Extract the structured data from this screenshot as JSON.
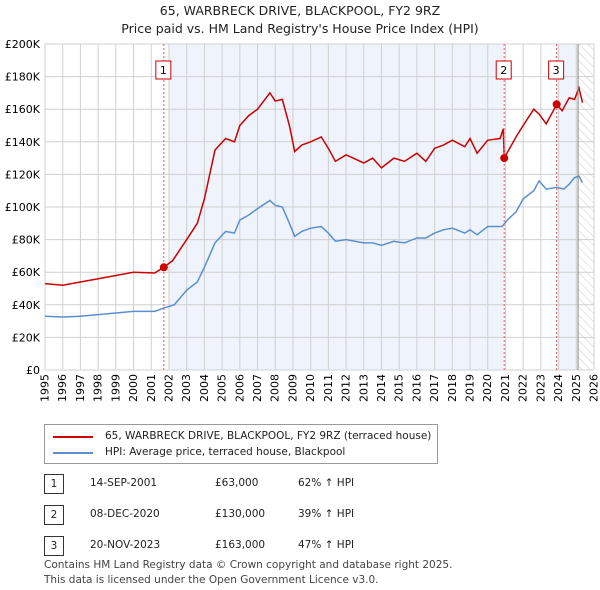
{
  "title_line1": "65, WARBRECK DRIVE, BLACKPOOL, FY2 9RZ",
  "title_line2": "Price paid vs. HM Land Registry's House Price Index (HPI)",
  "colors": {
    "property": "#cc0000",
    "hpi": "#5b8fd0",
    "shade": "#eef3fc"
  },
  "chart_data": {
    "type": "line",
    "xlim": [
      1995,
      2026
    ],
    "ylim": [
      0,
      200000
    ],
    "x_ticks": [
      "1995",
      "1996",
      "1997",
      "1998",
      "1999",
      "2000",
      "2001",
      "2002",
      "2003",
      "2004",
      "2005",
      "2006",
      "2007",
      "2008",
      "2009",
      "2010",
      "2011",
      "2012",
      "2013",
      "2014",
      "2015",
      "2016",
      "2017",
      "2018",
      "2019",
      "2020",
      "2021",
      "2022",
      "2023",
      "2024",
      "2025",
      "2026"
    ],
    "y_ticks": [
      {
        "v": 0,
        "label": "£0"
      },
      {
        "v": 20000,
        "label": "£20K"
      },
      {
        "v": 40000,
        "label": "£40K"
      },
      {
        "v": 60000,
        "label": "£60K"
      },
      {
        "v": 80000,
        "label": "£80K"
      },
      {
        "v": 100000,
        "label": "£100K"
      },
      {
        "v": 120000,
        "label": "£120K"
      },
      {
        "v": 140000,
        "label": "£140K"
      },
      {
        "v": 160000,
        "label": "£160K"
      },
      {
        "v": 180000,
        "label": "£180K"
      },
      {
        "v": 200000,
        "label": "£200K"
      }
    ],
    "series": [
      {
        "name": "65, WARBRECK DRIVE, BLACKPOOL, FY2 9RZ (terraced house)",
        "points": [
          [
            1995,
            53000
          ],
          [
            1996,
            52000
          ],
          [
            1997,
            54000
          ],
          [
            1998,
            56000
          ],
          [
            1999,
            58000
          ],
          [
            2000,
            60000
          ],
          [
            2001.2,
            59500
          ],
          [
            2001.7,
            63000
          ],
          [
            2002.2,
            67000
          ],
          [
            2003,
            80000
          ],
          [
            2003.6,
            90000
          ],
          [
            2004,
            105000
          ],
          [
            2004.6,
            135000
          ],
          [
            2005.2,
            142000
          ],
          [
            2005.7,
            140000
          ],
          [
            2006,
            150000
          ],
          [
            2006.5,
            156000
          ],
          [
            2007,
            160000
          ],
          [
            2007.7,
            170000
          ],
          [
            2008,
            165000
          ],
          [
            2008.4,
            166000
          ],
          [
            2008.8,
            150000
          ],
          [
            2009.1,
            134000
          ],
          [
            2009.5,
            138000
          ],
          [
            2010,
            140000
          ],
          [
            2010.6,
            143000
          ],
          [
            2011,
            136000
          ],
          [
            2011.4,
            128000
          ],
          [
            2012,
            132000
          ],
          [
            2013,
            127000
          ],
          [
            2013.5,
            130000
          ],
          [
            2014,
            124000
          ],
          [
            2014.7,
            130000
          ],
          [
            2015.3,
            128000
          ],
          [
            2016,
            133000
          ],
          [
            2016.5,
            128000
          ],
          [
            2017,
            136000
          ],
          [
            2017.5,
            138000
          ],
          [
            2018,
            141000
          ],
          [
            2018.7,
            137000
          ],
          [
            2019,
            142000
          ],
          [
            2019.4,
            133000
          ],
          [
            2020,
            141000
          ],
          [
            2020.7,
            142000
          ],
          [
            2020.88,
            148000
          ],
          [
            2020.93,
            130000
          ],
          [
            2021.6,
            143000
          ],
          [
            2022,
            150000
          ],
          [
            2022.6,
            160000
          ],
          [
            2022.9,
            157000
          ],
          [
            2023.3,
            151000
          ],
          [
            2023.9,
            163000
          ],
          [
            2024.2,
            159000
          ],
          [
            2024.6,
            167000
          ],
          [
            2024.9,
            166000
          ],
          [
            2025.15,
            173000
          ],
          [
            2025.35,
            164000
          ]
        ]
      },
      {
        "name": "HPI: Average price, terraced house, Blackpool",
        "points": [
          [
            1995,
            33000
          ],
          [
            1996,
            32500
          ],
          [
            1997,
            33000
          ],
          [
            1998,
            34000
          ],
          [
            1999,
            35000
          ],
          [
            2000,
            36000
          ],
          [
            2001.2,
            36000
          ],
          [
            2001.7,
            38000
          ],
          [
            2002.3,
            40000
          ],
          [
            2003,
            49000
          ],
          [
            2003.6,
            54000
          ],
          [
            2004,
            63000
          ],
          [
            2004.6,
            78000
          ],
          [
            2005.2,
            85000
          ],
          [
            2005.7,
            84000
          ],
          [
            2006,
            92000
          ],
          [
            2006.5,
            95000
          ],
          [
            2007,
            99000
          ],
          [
            2007.7,
            104000
          ],
          [
            2008,
            101000
          ],
          [
            2008.4,
            100000
          ],
          [
            2008.8,
            90000
          ],
          [
            2009.1,
            82000
          ],
          [
            2009.5,
            85000
          ],
          [
            2010,
            87000
          ],
          [
            2010.6,
            88000
          ],
          [
            2011,
            84000
          ],
          [
            2011.4,
            79000
          ],
          [
            2012,
            80000
          ],
          [
            2013,
            78000
          ],
          [
            2013.5,
            78000
          ],
          [
            2014,
            76500
          ],
          [
            2014.7,
            79000
          ],
          [
            2015.3,
            78000
          ],
          [
            2016,
            81000
          ],
          [
            2016.5,
            81000
          ],
          [
            2017,
            84000
          ],
          [
            2017.5,
            86000
          ],
          [
            2018,
            87000
          ],
          [
            2018.7,
            84000
          ],
          [
            2019,
            86000
          ],
          [
            2019.4,
            83000
          ],
          [
            2020,
            88000
          ],
          [
            2020.8,
            88000
          ],
          [
            2021.2,
            93000
          ],
          [
            2021.6,
            97000
          ],
          [
            2022,
            105000
          ],
          [
            2022.6,
            110000
          ],
          [
            2022.9,
            116000
          ],
          [
            2023.3,
            111000
          ],
          [
            2023.9,
            112000
          ],
          [
            2024.3,
            111000
          ],
          [
            2024.6,
            114000
          ],
          [
            2024.9,
            118000
          ],
          [
            2025.15,
            119000
          ],
          [
            2025.35,
            115000
          ]
        ]
      }
    ],
    "sales": [
      {
        "label": "1",
        "x": 2001.71,
        "y": 63000
      },
      {
        "label": "2",
        "x": 2020.93,
        "y": 130000
      },
      {
        "label": "3",
        "x": 2023.89,
        "y": 163000
      }
    ],
    "shaded_ranges": [
      [
        2002.0,
        2020.93
      ],
      [
        2023.89,
        2025.1
      ]
    ],
    "hatched_from": 2025.1
  },
  "legend": {
    "property": "65, WARBRECK DRIVE, BLACKPOOL, FY2 9RZ (terraced house)",
    "hpi": "HPI: Average price, terraced house, Blackpool"
  },
  "transactions": [
    {
      "num": "1",
      "date": "14-SEP-2001",
      "price": "£63,000",
      "hpi": "62% ↑ HPI"
    },
    {
      "num": "2",
      "date": "08-DEC-2020",
      "price": "£130,000",
      "hpi": "39% ↑ HPI"
    },
    {
      "num": "3",
      "date": "20-NOV-2023",
      "price": "£163,000",
      "hpi": "47% ↑ HPI"
    }
  ],
  "footer_line1": "Contains HM Land Registry data © Crown copyright and database right 2025.",
  "footer_line2": "This data is licensed under the Open Government Licence v3.0."
}
